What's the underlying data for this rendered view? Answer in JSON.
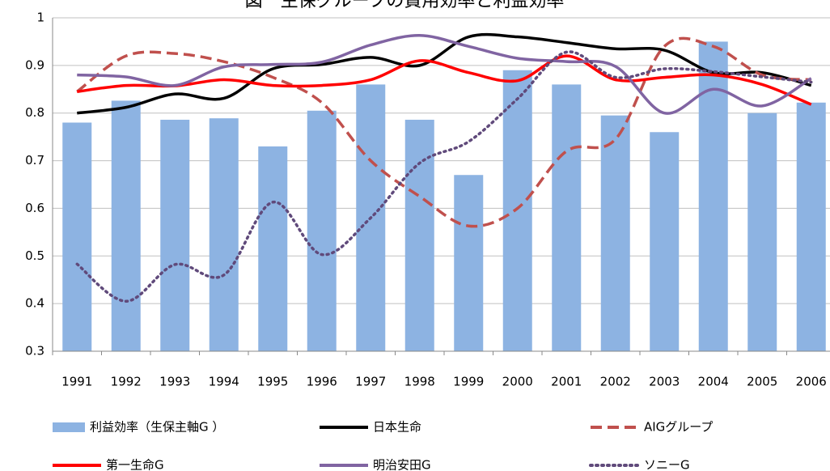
{
  "chart_data": {
    "type": "combo",
    "title": "図　生保グループの費用効率と利益効率",
    "categories": [
      "1991",
      "1992",
      "1993",
      "1994",
      "1995",
      "1996",
      "1997",
      "1998",
      "1999",
      "2000",
      "2001",
      "2002",
      "2003",
      "2004",
      "2005",
      "2006"
    ],
    "ylim": [
      0.3,
      1
    ],
    "yticks": [
      0.3,
      0.4,
      0.5,
      0.6,
      0.7,
      0.8,
      0.9,
      1
    ],
    "grid": true,
    "series": [
      {
        "name": "利益効率（生保主軸G ）",
        "type": "bar",
        "color": "#8db3e2",
        "values": [
          0.78,
          0.826,
          0.786,
          0.789,
          0.73,
          0.805,
          0.86,
          0.786,
          0.67,
          0.89,
          0.86,
          0.795,
          0.76,
          0.95,
          0.8,
          0.822
        ]
      },
      {
        "name": "日本生命",
        "type": "line",
        "color": "#000000",
        "dash": "solid",
        "values": [
          0.8,
          0.812,
          0.84,
          0.831,
          0.893,
          0.902,
          0.917,
          0.9,
          0.96,
          0.96,
          0.948,
          0.935,
          0.932,
          0.885,
          0.885,
          0.858
        ]
      },
      {
        "name": "AIGグループ",
        "type": "line",
        "color": "#c0504d",
        "dash": "dashed",
        "values": [
          0.845,
          0.92,
          0.925,
          0.908,
          0.875,
          0.822,
          0.7,
          0.625,
          0.563,
          0.6,
          0.72,
          0.745,
          0.94,
          0.94,
          0.88,
          0.87
        ]
      },
      {
        "name": "第一生命G",
        "type": "line",
        "color": "#ff0000",
        "dash": "solid",
        "values": [
          0.845,
          0.858,
          0.857,
          0.87,
          0.858,
          0.858,
          0.87,
          0.91,
          0.885,
          0.868,
          0.92,
          0.87,
          0.875,
          0.88,
          0.86,
          0.818
        ]
      },
      {
        "name": "明治安田G",
        "type": "line",
        "color": "#8064a2",
        "dash": "solid",
        "values": [
          0.88,
          0.876,
          0.858,
          0.897,
          0.902,
          0.907,
          0.943,
          0.963,
          0.94,
          0.915,
          0.908,
          0.898,
          0.8,
          0.85,
          0.815,
          0.873
        ]
      },
      {
        "name": "ソニーG",
        "type": "line",
        "color": "#604a7b",
        "dash": "dotted",
        "values": [
          0.483,
          0.405,
          0.482,
          0.46,
          0.613,
          0.503,
          0.58,
          0.695,
          0.74,
          0.83,
          0.928,
          0.875,
          0.893,
          0.887,
          0.876,
          0.865
        ]
      }
    ]
  }
}
